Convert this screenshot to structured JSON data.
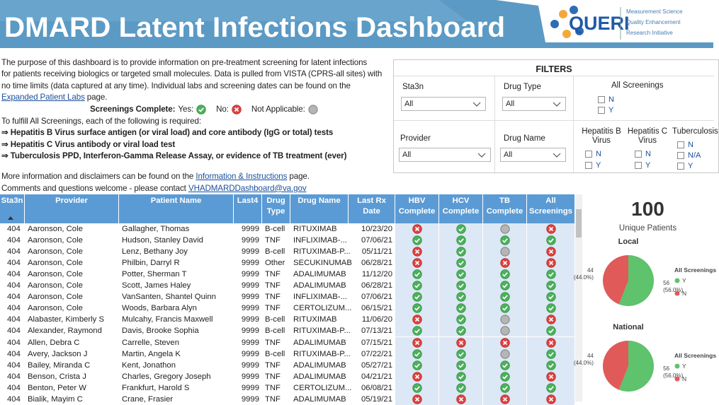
{
  "header": {
    "title": "DMARD Latent Infections Dashboard",
    "logo": "QUERI",
    "org_lines": [
      "Measurement Science",
      "Quality Enhancement",
      "Research Initiative"
    ]
  },
  "intro": {
    "lines": [
      "The purpose of this dashboard is to provide information on pre-treatment screening for latent infections",
      "for patients receiving biologics or targeted small molecules. Data is pulled from VISTA (CPRS-all sites) with",
      "no time limits (data captured at any time). Individual labs and screening dates can be found on the"
    ],
    "link": "Expanded Patient Labs",
    "link_end": "page."
  },
  "legend": {
    "label": "Screenings Complete:",
    "items": [
      {
        "text": "Yes:",
        "status": "Y"
      },
      {
        "text": "No:",
        "status": "N"
      },
      {
        "text": "Not Applicable:",
        "status": "N/A"
      }
    ]
  },
  "requirements": {
    "intro": "To fulfill All Screenings, each of the following is required:",
    "items": [
      "⇒ Hepatitis B Virus surface antigen (or viral load) and core antibody (IgG or total) tests",
      "⇒ Hepatitis C Virus antibody or viral load test",
      "⇒ Tuberculosis PPD, Interferon-Gamma Release Assay, or evidence of TB treatment (ever)"
    ]
  },
  "notes": {
    "more": "More information and disclaimers can be found on the",
    "more_link": "Information & Instructions",
    "more_end": "page.",
    "contact": "Comments and questions welcome - please contact",
    "contact_link": "VHADMARDDashboard@va.gov"
  },
  "filters": {
    "title": "FILTERS",
    "dropdowns": [
      {
        "label": "Sta3n",
        "value": "All"
      },
      {
        "label": "Drug Type",
        "value": "All"
      },
      {
        "label": "Provider",
        "value": "All"
      },
      {
        "label": "Drug Name",
        "value": "All"
      }
    ],
    "checklists": [
      {
        "label": "All Screenings",
        "options": [
          "N",
          "Y"
        ]
      },
      {
        "label": "Hepatitis B Virus",
        "options": [
          "N",
          "Y"
        ]
      },
      {
        "label": "Hepatitis C Virus",
        "options": [
          "N",
          "Y"
        ]
      },
      {
        "label": "Tuberculosis",
        "options": [
          "N",
          "N/A",
          "Y"
        ]
      }
    ]
  },
  "table": {
    "columns": [
      "Sta3n",
      "Provider",
      "Patient Name",
      "Last4",
      "Drug Type",
      "Drug Name",
      "Last Rx Date",
      "HBV Complete",
      "HCV Complete",
      "TB Complete",
      "All Screenings"
    ],
    "rows": [
      [
        404,
        "Aaronson, Cole",
        "Gallagher, Thomas",
        9999,
        "B-cell",
        "RITUXIMAB",
        "10/23/20",
        "N",
        "Y",
        "N/A",
        "N"
      ],
      [
        404,
        "Aaronson, Cole",
        "Hudson, Stanley David",
        9999,
        "TNF",
        "INFLIXIMAB-...",
        "07/06/21",
        "Y",
        "Y",
        "Y",
        "Y"
      ],
      [
        404,
        "Aaronson, Cole",
        "Lenz, Bethany Joy",
        9999,
        "B-cell",
        "RITUXIMAB-P...",
        "05/11/21",
        "N",
        "Y",
        "N/A",
        "N"
      ],
      [
        404,
        "Aaronson, Cole",
        "Philbin, Darryl R",
        9999,
        "Other",
        "SECUKINUMAB",
        "06/28/21",
        "N",
        "Y",
        "N",
        "N"
      ],
      [
        404,
        "Aaronson, Cole",
        "Potter, Sherman T",
        9999,
        "TNF",
        "ADALIMUMAB",
        "11/12/20",
        "Y",
        "Y",
        "Y",
        "Y"
      ],
      [
        404,
        "Aaronson, Cole",
        "Scott, James Haley",
        9999,
        "TNF",
        "ADALIMUMAB",
        "06/28/21",
        "Y",
        "Y",
        "Y",
        "Y"
      ],
      [
        404,
        "Aaronson, Cole",
        "VanSanten, Shantel Quinn",
        9999,
        "TNF",
        "INFLIXIMAB-...",
        "07/06/21",
        "Y",
        "Y",
        "Y",
        "Y"
      ],
      [
        404,
        "Aaronson, Cole",
        "Woods, Barbara Alyn",
        9999,
        "TNF",
        "CERTOLIZUM...",
        "06/15/21",
        "Y",
        "Y",
        "Y",
        "Y"
      ],
      [
        404,
        "Alabaster, Kimberly S",
        "Mulcahy, Francis Maxwell",
        9999,
        "B-cell",
        "RITUXIMAB",
        "11/06/20",
        "N",
        "Y",
        "N/A",
        "N"
      ],
      [
        404,
        "Alexander, Raymond",
        "Davis, Brooke Sophia",
        9999,
        "B-cell",
        "RITUXIMAB-P...",
        "07/13/21",
        "Y",
        "Y",
        "N/A",
        "Y"
      ],
      [
        404,
        "Allen, Debra C",
        "Carrelle, Steven",
        9999,
        "TNF",
        "ADALIMUMAB",
        "07/15/21",
        "N",
        "N",
        "N",
        "N"
      ],
      [
        404,
        "Avery, Jackson J",
        "Martin, Angela K",
        9999,
        "B-cell",
        "RITUXIMAB-P...",
        "07/22/21",
        "Y",
        "Y",
        "N/A",
        "Y"
      ],
      [
        404,
        "Bailey, Miranda C",
        "Kent, Jonathon",
        9999,
        "TNF",
        "ADALIMUMAB",
        "05/27/21",
        "Y",
        "Y",
        "Y",
        "Y"
      ],
      [
        404,
        "Benson, Crista J",
        "Charles, Gregory Joseph",
        9999,
        "TNF",
        "ADALIMUMAB",
        "04/21/21",
        "N",
        "Y",
        "Y",
        "N"
      ],
      [
        404,
        "Benton, Peter W",
        "Frankfurt, Harold S",
        9999,
        "TNF",
        "CERTOLIZUM...",
        "06/08/21",
        "Y",
        "Y",
        "Y",
        "Y"
      ],
      [
        404,
        "Bialik, Mayim C",
        "Crane, Frasier",
        9999,
        "TNF",
        "ADALIMUMAB",
        "05/19/21",
        "N",
        "N",
        "N",
        "N"
      ]
    ]
  },
  "summary": {
    "count": 100,
    "label": "Unique Patients"
  },
  "chart_data": [
    {
      "type": "pie",
      "title": "Local",
      "legend_title": "All Screenings",
      "categories": [
        "Y",
        "N"
      ],
      "values": [
        56,
        44
      ],
      "percent_labels": [
        "(56.0%)",
        "(44.0%)"
      ],
      "colors": [
        "#5fc26c",
        "#e05a5a"
      ]
    },
    {
      "type": "pie",
      "title": "National",
      "legend_title": "All Screenings",
      "categories": [
        "Y",
        "N"
      ],
      "values": [
        56,
        44
      ],
      "percent_labels": [
        "(56.0%)",
        "(44.0%)"
      ],
      "colors": [
        "#5fc26c",
        "#e05a5a"
      ]
    }
  ]
}
